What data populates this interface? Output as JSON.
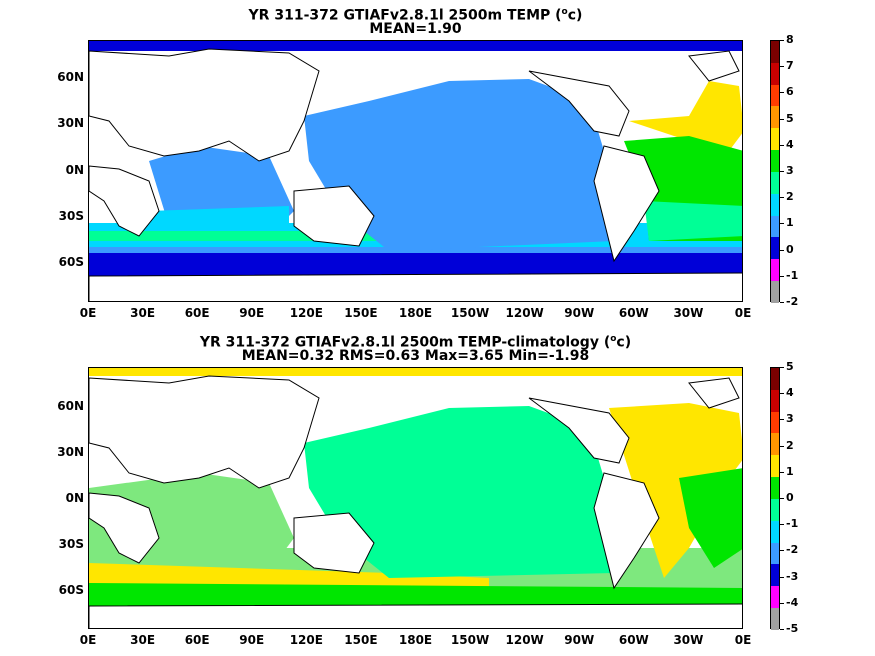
{
  "top_panel": {
    "title_pre": "YR 311-372 GTIAFv2.8.1l 2500m TEMP (",
    "title_sup": "o",
    "title_post": "c)",
    "subtitle": "MEAN=1.90",
    "colorbar_labels": [
      "8",
      "7",
      "6",
      "5",
      "4",
      "3",
      "2",
      "1",
      "0",
      "-1",
      "-2"
    ],
    "colorbar_colors": [
      "#7a0000",
      "#c80000",
      "#ff3c00",
      "#ff9600",
      "#ffe600",
      "#00e600",
      "#00ff96",
      "#00d8ff",
      "#3c9bff",
      "#0000d8",
      "#ff00ff",
      "#a0a0a0"
    ]
  },
  "bottom_panel": {
    "title_pre": "YR 311-372 GTIAFv2.8.1l 2500m TEMP-climatology (",
    "title_sup": "o",
    "title_post": "c)",
    "subtitle": "MEAN=0.32   RMS=0.63   Max=3.65   Min=-1.98",
    "colorbar_labels": [
      "5",
      "4",
      "3",
      "2",
      "1",
      "0",
      "-1",
      "-2",
      "-3",
      "-4",
      "-5"
    ],
    "colorbar_colors": [
      "#7a0000",
      "#c80000",
      "#ff3c00",
      "#ff9600",
      "#ffe600",
      "#00e600",
      "#00ff96",
      "#00d8ff",
      "#3c9bff",
      "#0000d8",
      "#ff00ff",
      "#a0a0a0"
    ]
  },
  "lat_labels": [
    "60N",
    "30N",
    "0N",
    "30S",
    "60S"
  ],
  "lon_labels": [
    "0E",
    "30E",
    "60E",
    "90E",
    "120E",
    "150E",
    "180E",
    "150W",
    "120W",
    "90W",
    "60W",
    "30W",
    "0E"
  ]
}
